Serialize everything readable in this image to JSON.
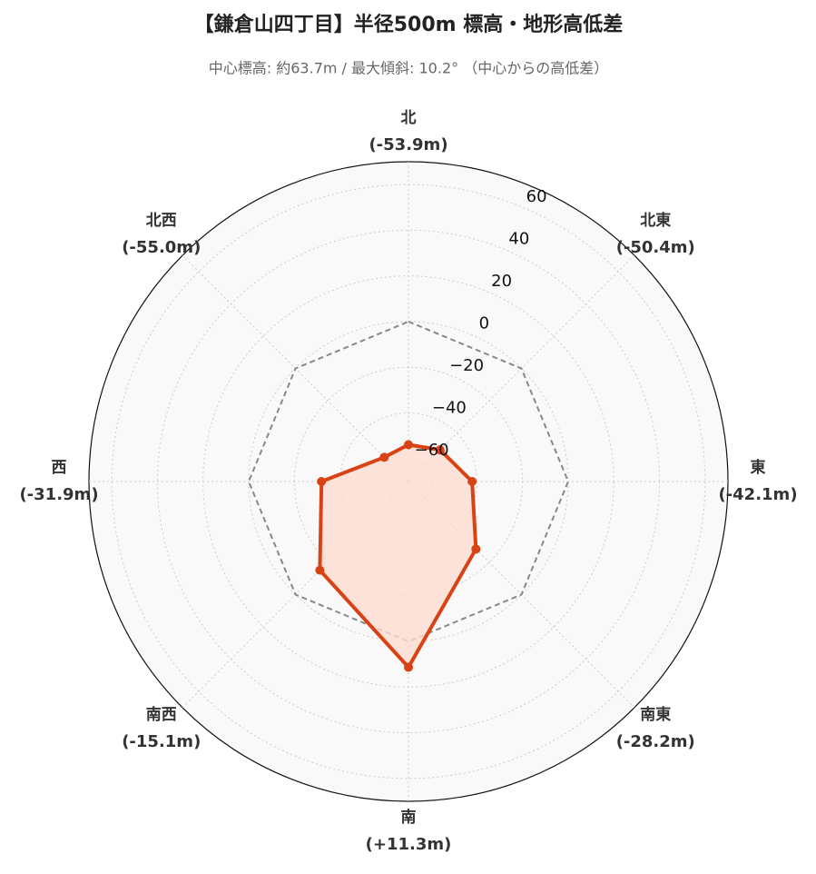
{
  "chart_data": {
    "type": "radar",
    "title": "【鎌倉山四丁目】半径500m 標高・地形高低差",
    "subtitle": "中心標高: 約63.7m / 最大傾斜: 10.2° （中心からの高低差）",
    "categories": [
      "北",
      "北東",
      "東",
      "南東",
      "南",
      "南西",
      "西",
      "北西"
    ],
    "series": [
      {
        "values": [
          -53.9,
          -50.4,
          -42.1,
          -28.2,
          11.3,
          -15.1,
          -31.9,
          -55.0
        ],
        "value_labels": [
          "(-53.9m)",
          "(-50.4m)",
          "(-42.1m)",
          "(-28.2m)",
          "(+11.3m)",
          "(-15.1m)",
          "(-31.9m)",
          "(-55.0m)"
        ],
        "color": "#d84315",
        "fill": "#fddcd0"
      }
    ],
    "baseline": 0,
    "baseline_color": "#888888",
    "ylim": [
      -70,
      70
    ],
    "yticks": [
      {
        "value": -60,
        "label": "−60"
      },
      {
        "value": -40,
        "label": "−40"
      },
      {
        "value": -20,
        "label": "−20"
      },
      0,
      20,
      40,
      60
    ],
    "grid": true
  }
}
